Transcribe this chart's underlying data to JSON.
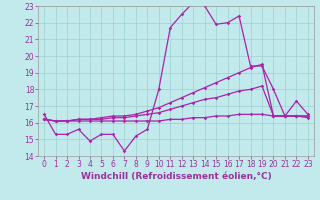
{
  "xlabel": "Windchill (Refroidissement éolien,°C)",
  "xlim": [
    -0.5,
    23.5
  ],
  "ylim": [
    14,
    23
  ],
  "yticks": [
    14,
    15,
    16,
    17,
    18,
    19,
    20,
    21,
    22,
    23
  ],
  "xticks": [
    0,
    1,
    2,
    3,
    4,
    5,
    6,
    7,
    8,
    9,
    10,
    11,
    12,
    13,
    14,
    15,
    16,
    17,
    18,
    19,
    20,
    21,
    22,
    23
  ],
  "bg_color": "#c2eaec",
  "grid_color": "#9ecfcf",
  "line_color": "#aa22aa",
  "line1_x": [
    0,
    1,
    2,
    3,
    4,
    5,
    6,
    7,
    8,
    9,
    10,
    11,
    12,
    13,
    14,
    15,
    16,
    17,
    18,
    19,
    20,
    21,
    22,
    23
  ],
  "line1_y": [
    16.5,
    15.3,
    15.3,
    15.6,
    14.9,
    15.3,
    15.3,
    14.3,
    15.2,
    15.6,
    18.0,
    21.7,
    22.5,
    23.2,
    23.0,
    21.9,
    22.0,
    22.4,
    19.4,
    19.4,
    18.0,
    16.4,
    17.3,
    16.5
  ],
  "line2_x": [
    0,
    1,
    2,
    3,
    4,
    5,
    6,
    7,
    8,
    9,
    10,
    11,
    12,
    13,
    14,
    15,
    16,
    17,
    18,
    19,
    20,
    21,
    22,
    23
  ],
  "line2_y": [
    16.2,
    16.1,
    16.1,
    16.1,
    16.1,
    16.1,
    16.1,
    16.1,
    16.1,
    16.1,
    16.1,
    16.2,
    16.2,
    16.3,
    16.3,
    16.4,
    16.4,
    16.5,
    16.5,
    16.5,
    16.4,
    16.4,
    16.4,
    16.3
  ],
  "line3_x": [
    0,
    1,
    2,
    3,
    4,
    5,
    6,
    7,
    8,
    9,
    10,
    11,
    12,
    13,
    14,
    15,
    16,
    17,
    18,
    19,
    20,
    21,
    22,
    23
  ],
  "line3_y": [
    16.2,
    16.1,
    16.1,
    16.2,
    16.2,
    16.2,
    16.3,
    16.3,
    16.4,
    16.5,
    16.6,
    16.8,
    17.0,
    17.2,
    17.4,
    17.5,
    17.7,
    17.9,
    18.0,
    18.2,
    16.4,
    16.4,
    16.4,
    16.4
  ],
  "line4_x": [
    0,
    1,
    2,
    3,
    4,
    5,
    6,
    7,
    8,
    9,
    10,
    11,
    12,
    13,
    14,
    15,
    16,
    17,
    18,
    19,
    20,
    21,
    22,
    23
  ],
  "line4_y": [
    16.2,
    16.1,
    16.1,
    16.2,
    16.2,
    16.3,
    16.4,
    16.4,
    16.5,
    16.7,
    16.9,
    17.2,
    17.5,
    17.8,
    18.1,
    18.4,
    18.7,
    19.0,
    19.3,
    19.5,
    16.4,
    16.4,
    16.4,
    16.4
  ],
  "font_color": "#993399",
  "tick_fontsize": 5.5,
  "xlabel_fontsize": 6.5,
  "marker": "D",
  "marker_size": 1.8,
  "linewidth": 0.9
}
